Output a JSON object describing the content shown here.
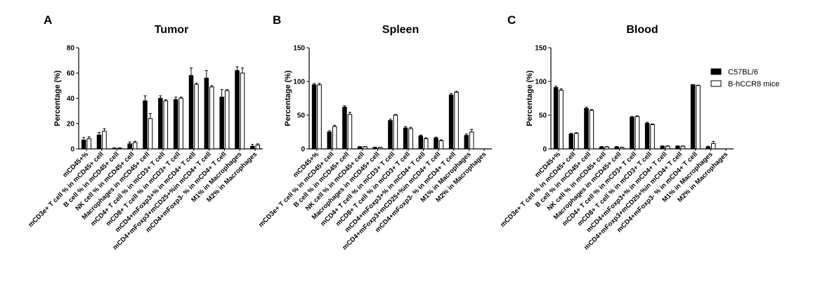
{
  "legend": [
    {
      "name": "C57BL/6",
      "color": "#000000"
    },
    {
      "name": "B-hCCR8 mice",
      "color": "#ffffff"
    }
  ],
  "chart_data": [
    {
      "panel": "A",
      "type": "bar",
      "title": "Tumor",
      "ylabel": "Percentage (%)",
      "ylim": [
        0,
        80
      ],
      "yticks": [
        0,
        20,
        40,
        60,
        80
      ],
      "categories": [
        "mCD45+%",
        "mCD3e+ T cell % in mCD45+ cell",
        "B cell % in mCD45+ cell",
        "NK cell % in mCD45+ cell",
        "Macrophages in mCD45+ cell",
        "mCD4+ T cell % in mCD3+ T cell",
        "mCD8+ T cell % in mCD3+ T cell",
        "mCD4+mFoxp3+% in mCD4+ T cell",
        "mCD4+mFoxp3+mCD25+%in mCD4+ T cell",
        "mCD4+mFoxp3- % in mCD4+ T cell",
        "M1% in Macrophages",
        "M2% in Macrophages"
      ],
      "series": [
        {
          "name": "C57BL/6",
          "values": [
            7,
            11,
            0.5,
            4,
            38,
            40,
            39,
            58,
            56,
            41,
            62,
            2
          ],
          "errors": [
            2,
            2,
            0.3,
            1.5,
            4,
            2,
            2,
            6,
            6,
            6,
            3,
            1.5
          ]
        },
        {
          "name": "B-hCCR8 mice",
          "values": [
            8,
            14,
            0.5,
            5,
            24,
            38,
            40,
            51,
            49,
            46,
            60,
            3
          ],
          "errors": [
            1.5,
            2,
            0.3,
            1,
            4,
            1,
            1,
            1,
            1,
            1,
            4,
            1
          ]
        }
      ]
    },
    {
      "panel": "B",
      "type": "bar",
      "title": "Spleen",
      "ylabel": "Percentage (%)",
      "ylim": [
        0,
        150
      ],
      "yticks": [
        0,
        50,
        100,
        150
      ],
      "categories": [
        "mCD45+%",
        "mCD3e+ T cell % in mCD45+ cell",
        "B cell % in mCD45+ cell",
        "NK cell % in mCD45+ cell",
        "Macrophages in mCD45+ cell",
        "mCD4+ T cell % in mCD3+ T cell",
        "mCD8+ T cell % in mCD3+ T cell",
        "mCD4+mFoxp3+% in mCD4+ T cell",
        "mCD4+mFoxp3+mCD25+%in mCD4+ T cell",
        "mCD4+mFoxp3- % in mCD4+ T cell",
        "M1% in Macrophages",
        "M2% in Macrophages"
      ],
      "series": [
        {
          "name": "C57BL/6",
          "values": [
            95,
            25,
            62,
            3,
            2,
            42,
            31,
            19,
            16,
            80,
            20,
            0
          ],
          "errors": [
            2,
            2,
            2,
            0.5,
            0.5,
            2,
            2,
            1.5,
            1.5,
            2,
            2,
            0
          ]
        },
        {
          "name": "B-hCCR8 mice",
          "values": [
            95,
            33,
            51,
            3,
            2,
            50,
            30,
            15,
            12,
            84,
            25,
            0
          ],
          "errors": [
            2,
            2,
            3,
            0.5,
            0.5,
            1,
            2,
            1.5,
            1.5,
            1.5,
            4,
            0
          ]
        }
      ]
    },
    {
      "panel": "C",
      "type": "bar",
      "title": "Blood",
      "ylabel": "Percentage (%)",
      "ylim": [
        0,
        150
      ],
      "yticks": [
        0,
        50,
        100,
        150
      ],
      "categories": [
        "mCD45+%",
        "mCD3e+ T cell % in mCD45+ cell",
        "B cell % in mCD45+ cell",
        "NK cell % in mCD45+ cell",
        "Macrophages in mCD45+ cell",
        "mCD4+ T cell % in mCD3+ T cell",
        "mCD8+ T cell % in mCD3+ T cell",
        "mCD4+mFoxp3+% in mCD4+ T cell",
        "mCD4+mFoxp3+mCD25+%in mCD4+ T cell",
        "mCD4+mFoxp3- % in mCD4+ T cell",
        "M1% in Macrophages",
        "M2% in Macrophages"
      ],
      "series": [
        {
          "name": "C57BL/6",
          "values": [
            91,
            22,
            60,
            3,
            3,
            47,
            38,
            4,
            4,
            95,
            3,
            0
          ],
          "errors": [
            2,
            1,
            2,
            0.5,
            0.5,
            1,
            1.5,
            0.5,
            0.5,
            0.5,
            1,
            0
          ]
        },
        {
          "name": "B-hCCR8 mice",
          "values": [
            87,
            23,
            57,
            3,
            2,
            48,
            36,
            4,
            4,
            94,
            8,
            0
          ],
          "errors": [
            2,
            1,
            1.5,
            0.5,
            0.5,
            1,
            1,
            0.5,
            0.5,
            0.5,
            3,
            0
          ]
        }
      ]
    }
  ]
}
